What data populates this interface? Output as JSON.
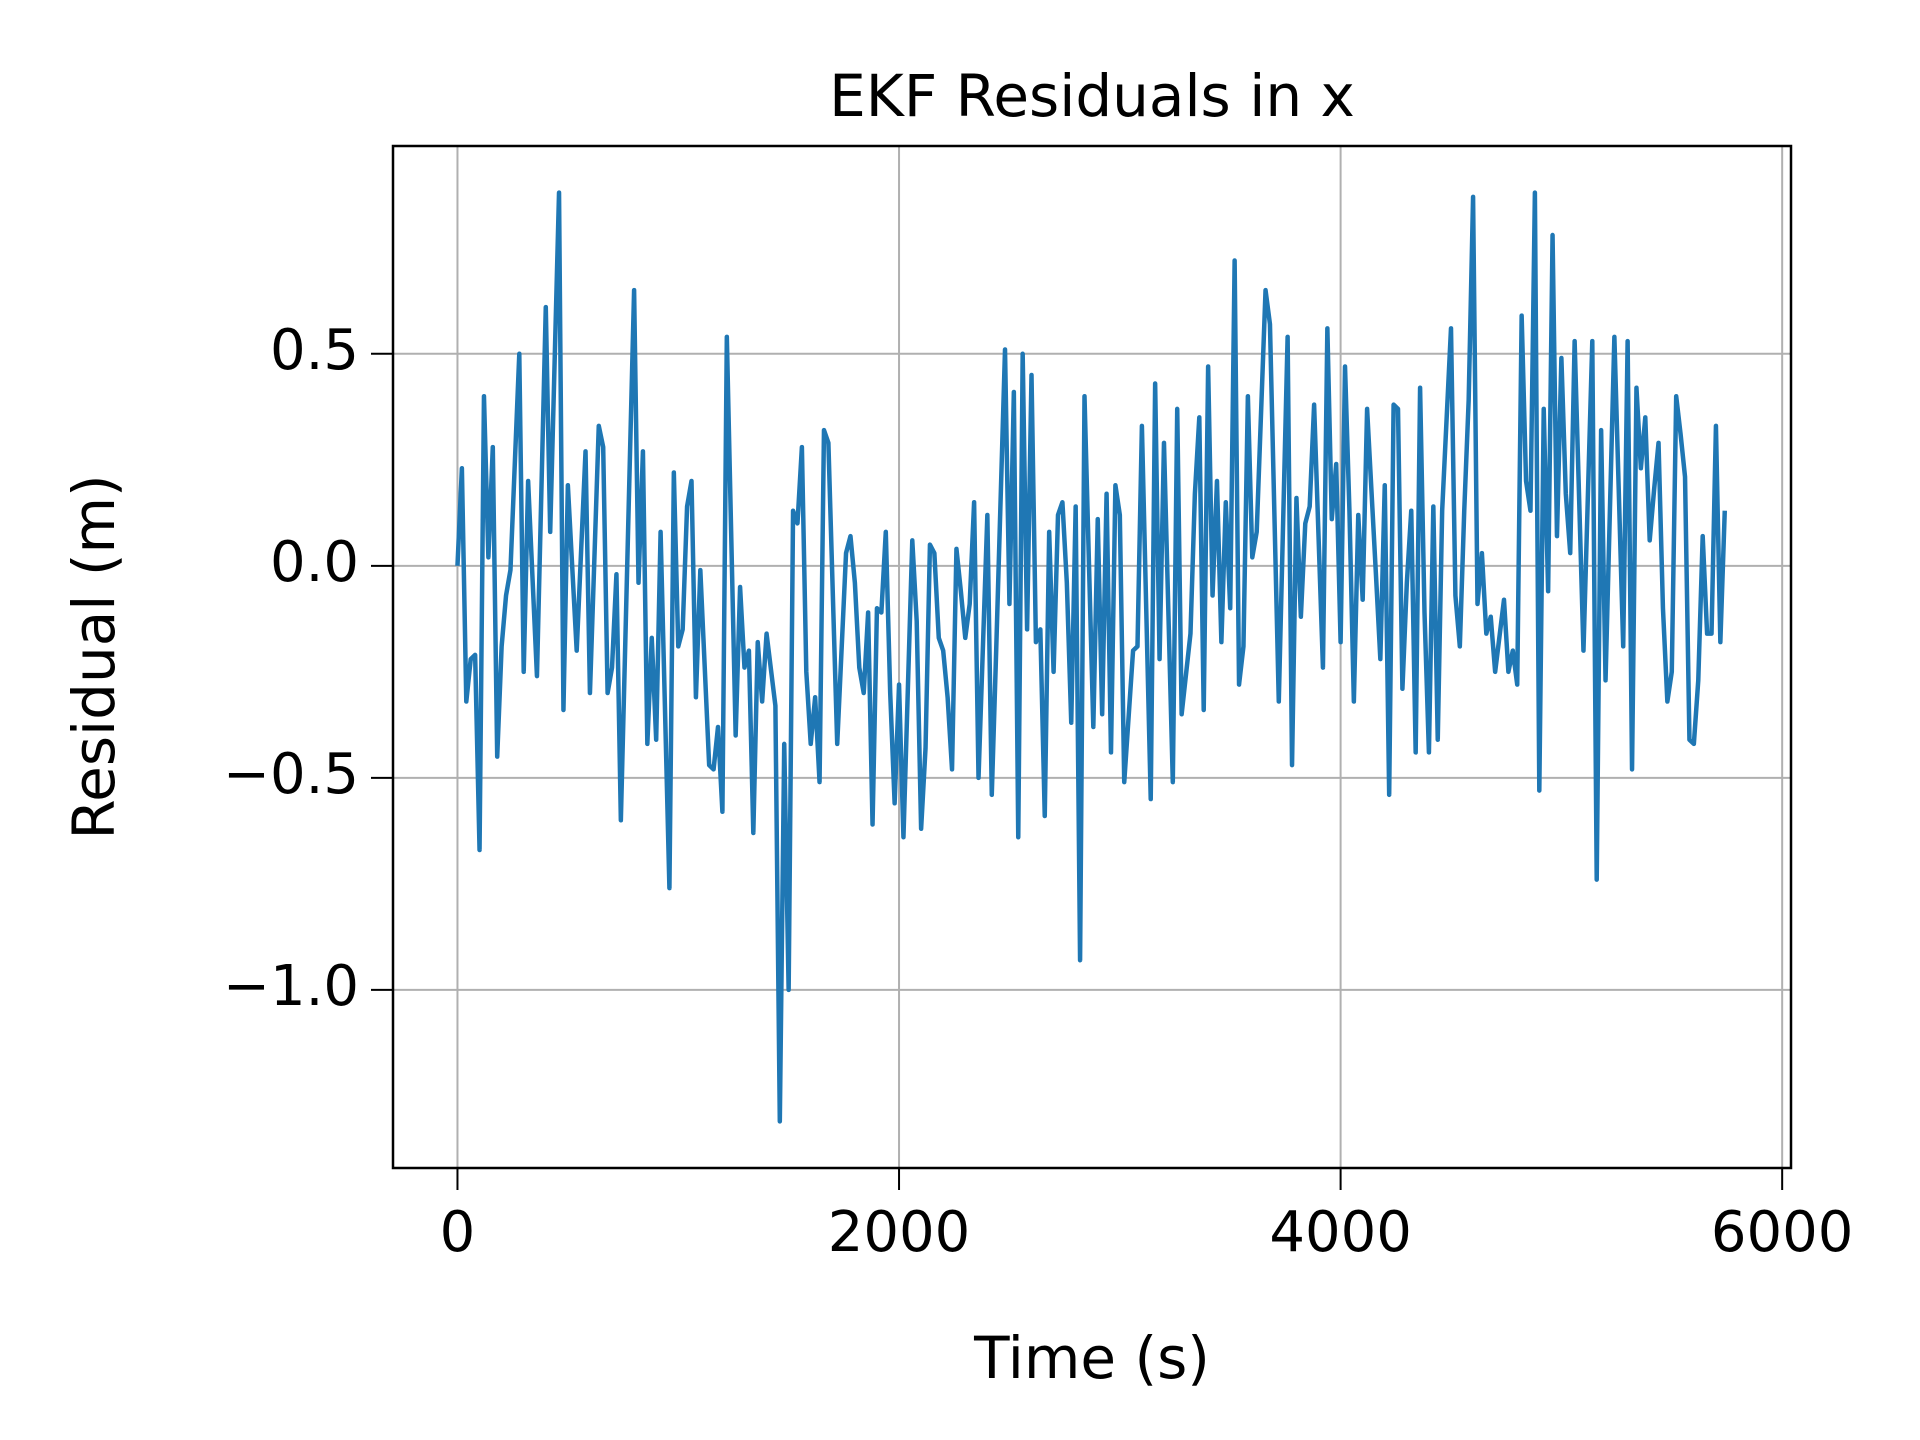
{
  "chart_data": {
    "type": "line",
    "title": "EKF Residuals in x",
    "xlabel": "Time (s)",
    "ylabel": "Residual (m)",
    "x": [
      0,
      20,
      40,
      60,
      80,
      100,
      120,
      140,
      160,
      180,
      200,
      220,
      240,
      280,
      300,
      320,
      360,
      400,
      420,
      460,
      480,
      500,
      540,
      580,
      600,
      640,
      660,
      680,
      700,
      720,
      740,
      800,
      820,
      840,
      860,
      880,
      900,
      920,
      960,
      980,
      1000,
      1020,
      1040,
      1060,
      1080,
      1100,
      1140,
      1160,
      1180,
      1200,
      1220,
      1260,
      1280,
      1300,
      1320,
      1340,
      1360,
      1380,
      1400,
      1440,
      1460,
      1480,
      1500,
      1520,
      1540,
      1560,
      1580,
      1600,
      1620,
      1640,
      1660,
      1680,
      1720,
      1760,
      1780,
      1800,
      1820,
      1840,
      1860,
      1880,
      1900,
      1920,
      1940,
      1960,
      1980,
      2000,
      2020,
      2060,
      2080,
      2100,
      2120,
      2140,
      2160,
      2180,
      2200,
      2220,
      2240,
      2260,
      2280,
      2300,
      2320,
      2340,
      2360,
      2400,
      2420,
      2440,
      2480,
      2500,
      2520,
      2540,
      2560,
      2580,
      2600,
      2620,
      2640,
      2660,
      2680,
      2700,
      2720,
      2740,
      2760,
      2780,
      2800,
      2820,
      2840,
      2880,
      2900,
      2920,
      2940,
      2960,
      2980,
      3000,
      3020,
      3060,
      3080,
      3100,
      3140,
      3160,
      3180,
      3200,
      3240,
      3260,
      3280,
      3320,
      3340,
      3360,
      3380,
      3400,
      3420,
      3440,
      3460,
      3480,
      3500,
      3520,
      3540,
      3560,
      3580,
      3600,
      3620,
      3660,
      3680,
      3720,
      3760,
      3780,
      3800,
      3820,
      3840,
      3860,
      3880,
      3920,
      3940,
      3960,
      3980,
      4000,
      4020,
      4040,
      4060,
      4080,
      4100,
      4120,
      4160,
      4180,
      4200,
      4220,
      4240,
      4260,
      4280,
      4300,
      4320,
      4340,
      4360,
      4380,
      4400,
      4420,
      4440,
      4460,
      4500,
      4520,
      4540,
      4560,
      4580,
      4600,
      4620,
      4640,
      4660,
      4680,
      4700,
      4740,
      4760,
      4780,
      4800,
      4820,
      4840,
      4860,
      4880,
      4900,
      4920,
      4940,
      4960,
      4980,
      5000,
      5020,
      5040,
      5060,
      5100,
      5140,
      5160,
      5180,
      5200,
      5240,
      5280,
      5300,
      5320,
      5340,
      5360,
      5380,
      5400,
      5420,
      5440,
      5460,
      5480,
      5500,
      5520,
      5540,
      5560,
      5580,
      5600,
      5620,
      5640,
      5660,
      5680,
      5700,
      5720,
      5740
    ],
    "values": [
      0,
      0.23,
      -0.32,
      -0.22,
      -0.21,
      -0.67,
      0.4,
      0.02,
      0.28,
      -0.45,
      -0.19,
      -0.07,
      -0.01,
      0.5,
      -0.25,
      0.2,
      -0.26,
      0.61,
      0.08,
      0.88,
      -0.34,
      0.19,
      -0.2,
      0.27,
      -0.3,
      0.33,
      0.28,
      -0.3,
      -0.24,
      -0.02,
      -0.6,
      0.65,
      -0.04,
      0.27,
      -0.42,
      -0.17,
      -0.41,
      0.08,
      -0.76,
      0.22,
      -0.19,
      -0.15,
      0.14,
      0.2,
      -0.31,
      -0.01,
      -0.47,
      -0.48,
      -0.38,
      -0.58,
      0.54,
      -0.4,
      -0.05,
      -0.24,
      -0.2,
      -0.63,
      -0.18,
      -0.32,
      -0.16,
      -0.33,
      -1.31,
      -0.42,
      -1.0,
      0.13,
      0.1,
      0.28,
      -0.25,
      -0.42,
      -0.31,
      -0.51,
      0.32,
      0.29,
      -0.42,
      0.03,
      0.07,
      -0.04,
      -0.24,
      -0.3,
      -0.11,
      -0.61,
      -0.1,
      -0.11,
      0.08,
      -0.3,
      -0.56,
      -0.28,
      -0.64,
      0.06,
      -0.13,
      -0.62,
      -0.43,
      0.05,
      0.03,
      -0.17,
      -0.2,
      -0.31,
      -0.48,
      0.04,
      -0.06,
      -0.17,
      -0.09,
      0.15,
      -0.5,
      0.12,
      -0.54,
      -0.2,
      0.51,
      -0.09,
      0.41,
      -0.64,
      0.5,
      -0.15,
      0.45,
      -0.18,
      -0.15,
      -0.59,
      0.08,
      -0.25,
      0.12,
      0.15,
      -0.04,
      -0.37,
      0.14,
      -0.93,
      0.4,
      -0.38,
      0.11,
      -0.35,
      0.17,
      -0.44,
      0.19,
      0.12,
      -0.51,
      -0.2,
      -0.19,
      0.33,
      -0.55,
      0.43,
      -0.22,
      0.29,
      -0.51,
      0.37,
      -0.35,
      -0.16,
      0.17,
      0.35,
      -0.34,
      0.47,
      -0.07,
      0.2,
      -0.18,
      0.15,
      -0.1,
      0.72,
      -0.28,
      -0.19,
      0.4,
      0.02,
      0.08,
      0.65,
      0.57,
      -0.32,
      0.54,
      -0.47,
      0.16,
      -0.12,
      0.1,
      0.14,
      0.38,
      -0.24,
      0.56,
      0.11,
      0.24,
      -0.18,
      0.47,
      0.13,
      -0.32,
      0.12,
      -0.08,
      0.37,
      -0.02,
      -0.22,
      0.19,
      -0.54,
      0.38,
      0.37,
      -0.29,
      -0.04,
      0.13,
      -0.44,
      0.42,
      -0.11,
      -0.44,
      0.14,
      -0.41,
      0.13,
      0.56,
      -0.07,
      -0.19,
      0.13,
      0.39,
      0.87,
      -0.09,
      0.03,
      -0.16,
      -0.12,
      -0.25,
      -0.08,
      -0.25,
      -0.2,
      -0.28,
      0.59,
      0.2,
      0.13,
      0.88,
      -0.53,
      0.37,
      -0.06,
      0.78,
      0.07,
      0.49,
      0.17,
      0.03,
      0.53,
      -0.2,
      0.53,
      -0.74,
      0.32,
      -0.27,
      0.54,
      -0.19,
      0.53,
      -0.48,
      0.42,
      0.23,
      0.35,
      0.06,
      0.18,
      0.29,
      -0.1,
      -0.32,
      -0.25,
      0.4,
      0.31,
      0.21,
      -0.41,
      -0.42,
      -0.27,
      0.07,
      -0.16,
      -0.16,
      0.33,
      -0.18,
      0.13
    ],
    "color": "#1f77b4",
    "xlim": [
      -292,
      6040
    ],
    "ylim": [
      -1.42,
      0.99
    ],
    "xticks": [
      0,
      2000,
      4000,
      6000
    ],
    "yticks": [
      {
        "value": -1.0,
        "label": "−1.0"
      },
      {
        "value": -0.5,
        "label": "−0.5"
      },
      {
        "value": 0,
        "label": "0.0"
      },
      0.5
    ],
    "grid": true
  }
}
